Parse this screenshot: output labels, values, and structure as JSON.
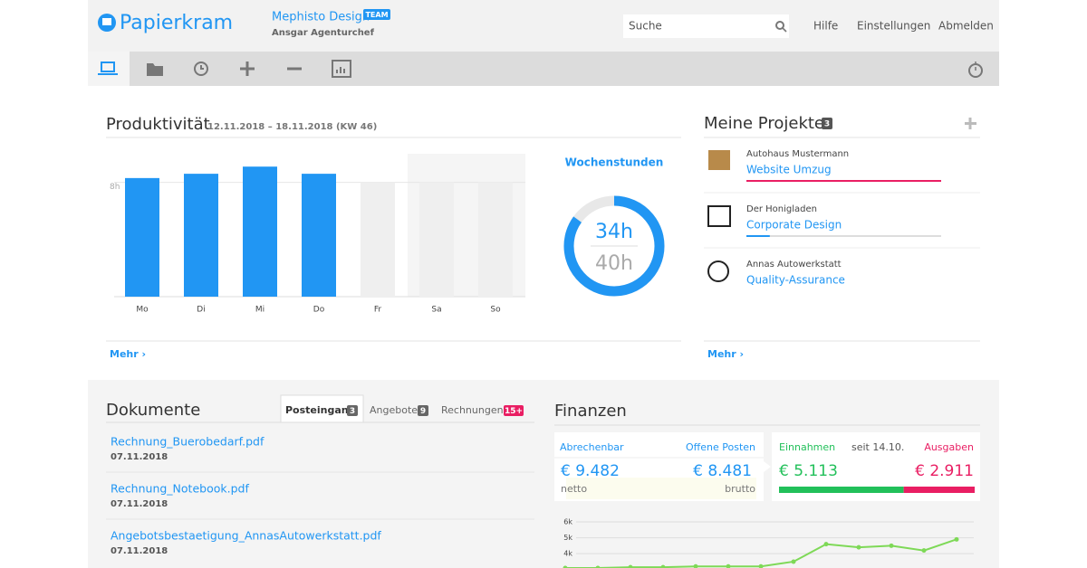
{
  "header": {
    "logo": "Papierkram",
    "company": "Mephisto Design",
    "badge": "TEAM",
    "user": "Ansgar Agenturchef",
    "search": "Suche",
    "links": [
      "Hilfe",
      "Einstellungen",
      "Abmelden"
    ]
  },
  "productivity": {
    "title": "Produktivität",
    "period": "12.11.2018 – 18.11.2018 (KW 46)",
    "more": "Mehr ›",
    "chart": {
      "type": "bar",
      "categories": [
        "Mo",
        "Di",
        "Mi",
        "Do",
        "Fr",
        "Sa",
        "So"
      ],
      "values": [
        8.3,
        8.6,
        9.1,
        8.6,
        null,
        null,
        null
      ],
      "color": "#2196f3",
      "ylim": [
        0,
        10
      ],
      "yticks": [
        {
          "value": 8,
          "label": "8h"
        }
      ]
    }
  },
  "weekly_hours": {
    "title": "Wochenstunden",
    "value": 34,
    "value_label": "34h",
    "target": 40,
    "target_label": "40h",
    "color": "#2196f3"
  },
  "projects": {
    "title": "Meine Projekte",
    "count": 3,
    "more": "Mehr ›",
    "items": [
      {
        "client": "Autohaus Mustermann",
        "name": "Website Umzug",
        "progress": 100,
        "color": "#e91e63"
      },
      {
        "client": "Der Honigladen",
        "name": "Corporate Design",
        "progress": 12,
        "color": "#2196f3"
      },
      {
        "client": "Annas Autowerkstatt",
        "name": "Quality-Assurance",
        "progress": null,
        "color": "#2196f3"
      }
    ]
  },
  "documents": {
    "title": "Dokumente",
    "tabs": [
      {
        "label": "Posteingang",
        "count": 3
      },
      {
        "label": "Angebote",
        "count": 9
      },
      {
        "label": "Rechnungen",
        "count": "15+"
      }
    ],
    "files": [
      {
        "name": "Rechnung_Buerobedarf.pdf",
        "date": "07.11.2018"
      },
      {
        "name": "Rechnung_Notebook.pdf",
        "date": "07.11.2018"
      },
      {
        "name": "Angebotsbestaetigung_AnnasAutowerkstatt.pdf",
        "date": "07.11.2018"
      }
    ]
  },
  "finances": {
    "title": "Finanzen",
    "billable": {
      "label": "Abrechenbar",
      "value": 9482,
      "value_label": "€ 9.482",
      "note": "netto"
    },
    "open": {
      "label": "Offene Posten",
      "value": 8481,
      "value_label": "€ 8.481",
      "note": "brutto"
    },
    "income": {
      "label": "Einnahmen",
      "value": 5113,
      "value_label": "€ 5.113",
      "color": "#22c05a"
    },
    "since": "seit 14.10.",
    "expenses": {
      "label": "Ausgaben",
      "value": 2911,
      "value_label": "€ 2.911",
      "color": "#e91e63"
    },
    "chart": {
      "type": "line",
      "values": [
        3100,
        3100,
        3150,
        3150,
        3200,
        3200,
        3200,
        3500,
        4600,
        4400,
        4500,
        4200,
        4900
      ],
      "color": "#7ed957",
      "ylim": [
        3100,
        6400
      ],
      "yticks": [
        {
          "value": 4000,
          "label": "4k"
        },
        {
          "value": 5000,
          "label": "5k"
        },
        {
          "value": 6000,
          "label": "6k"
        }
      ]
    }
  }
}
